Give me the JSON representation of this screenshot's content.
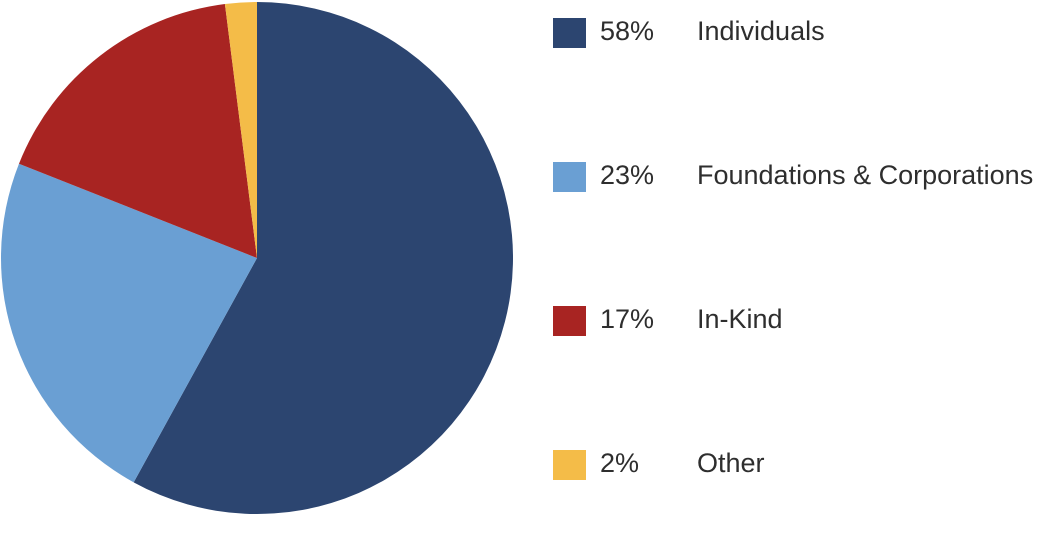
{
  "chart_data": {
    "type": "pie",
    "categories": [
      "Individuals",
      "Foundations & Corporations",
      "In-Kind",
      "Other"
    ],
    "values": [
      58,
      23,
      17,
      2
    ],
    "value_labels": [
      "58%",
      "23%",
      "17%",
      "2%"
    ],
    "colors": [
      "#2c4570",
      "#6a9fd3",
      "#a82422",
      "#f4bc48"
    ]
  }
}
